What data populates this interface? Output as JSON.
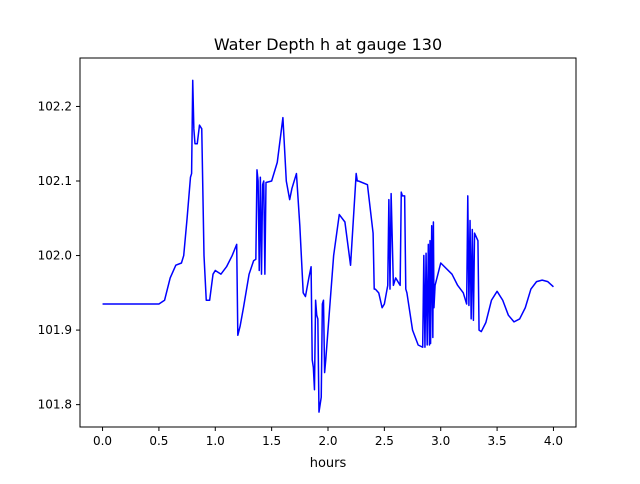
{
  "chart_data": {
    "type": "line",
    "title": "Water Depth h at gauge 130",
    "xlabel": "hours",
    "ylabel": "",
    "xlim": [
      -0.2,
      4.2
    ],
    "ylim": [
      101.77,
      102.265
    ],
    "xticks": [
      0.0,
      0.5,
      1.0,
      1.5,
      2.0,
      2.5,
      3.0,
      3.5,
      4.0
    ],
    "xtick_labels": [
      "0.0",
      "0.5",
      "1.0",
      "1.5",
      "2.0",
      "2.5",
      "3.0",
      "3.5",
      "4.0"
    ],
    "yticks": [
      101.8,
      101.9,
      102.0,
      102.1,
      102.2
    ],
    "ytick_labels": [
      "101.8",
      "101.9",
      "102.0",
      "102.1",
      "102.2"
    ],
    "grid": false,
    "legend": "none",
    "line_color": "#0000ff",
    "series": [
      {
        "color": "#0000ff",
        "x": [
          0.0,
          0.3,
          0.5,
          0.55,
          0.6,
          0.65,
          0.7,
          0.72,
          0.75,
          0.78,
          0.79,
          0.8,
          0.81,
          0.82,
          0.84,
          0.86,
          0.88,
          0.9,
          0.92,
          0.95,
          0.98,
          1.0,
          1.05,
          1.1,
          1.15,
          1.19,
          1.2,
          1.22,
          1.25,
          1.3,
          1.34,
          1.36,
          1.37,
          1.38,
          1.39,
          1.4,
          1.41,
          1.42,
          1.43,
          1.44,
          1.45,
          1.5,
          1.55,
          1.6,
          1.63,
          1.66,
          1.68,
          1.72,
          1.75,
          1.78,
          1.8,
          1.83,
          1.85,
          1.86,
          1.87,
          1.88,
          1.89,
          1.9,
          1.91,
          1.92,
          1.93,
          1.94,
          1.95,
          1.96,
          1.97,
          1.98,
          2.0,
          2.05,
          2.1,
          2.15,
          2.2,
          2.25,
          2.26,
          2.27,
          2.35,
          2.4,
          2.41,
          2.42,
          2.45,
          2.48,
          2.5,
          2.53,
          2.54,
          2.55,
          2.56,
          2.58,
          2.6,
          2.62,
          2.64,
          2.65,
          2.66,
          2.68,
          2.69,
          2.7,
          2.75,
          2.8,
          2.84,
          2.85,
          2.86,
          2.87,
          2.88,
          2.89,
          2.9,
          2.905,
          2.91,
          2.92,
          2.93,
          2.935,
          2.94,
          2.95,
          3.0,
          3.1,
          3.15,
          3.2,
          3.23,
          3.24,
          3.25,
          3.26,
          3.27,
          3.28,
          3.29,
          3.3,
          3.33,
          3.34,
          3.36,
          3.4,
          3.45,
          3.5,
          3.55,
          3.6,
          3.65,
          3.7,
          3.75,
          3.8,
          3.85,
          3.9,
          3.95,
          4.0
        ],
        "y": [
          101.935,
          101.935,
          101.935,
          101.94,
          101.97,
          101.987,
          101.99,
          102.0,
          102.05,
          102.105,
          102.11,
          102.235,
          102.17,
          102.15,
          102.15,
          102.175,
          102.17,
          102.0,
          101.94,
          101.94,
          101.975,
          101.98,
          101.975,
          101.985,
          102.0,
          102.015,
          101.893,
          101.905,
          101.93,
          101.975,
          101.993,
          101.995,
          102.115,
          102.1,
          101.98,
          102.105,
          101.975,
          102.095,
          102.1,
          101.975,
          102.098,
          102.1,
          102.125,
          102.185,
          102.1,
          102.075,
          102.09,
          102.11,
          102.04,
          101.95,
          101.945,
          101.97,
          101.985,
          101.86,
          101.85,
          101.82,
          101.94,
          101.92,
          101.915,
          101.79,
          101.8,
          101.81,
          101.935,
          101.94,
          101.843,
          101.86,
          101.9,
          102.0,
          102.055,
          102.045,
          101.987,
          102.11,
          102.1,
          102.1,
          102.095,
          102.03,
          101.955,
          101.955,
          101.95,
          101.93,
          101.935,
          101.96,
          102.075,
          101.955,
          102.083,
          101.96,
          101.97,
          101.965,
          101.96,
          102.085,
          102.08,
          102.08,
          101.955,
          101.95,
          101.9,
          101.88,
          101.877,
          102.0,
          101.877,
          102.003,
          101.88,
          102.015,
          101.88,
          102.02,
          101.882,
          102.04,
          101.89,
          102.045,
          101.93,
          101.96,
          101.99,
          101.975,
          101.96,
          101.95,
          101.935,
          102.08,
          101.933,
          102.047,
          101.915,
          102.035,
          101.913,
          102.03,
          102.02,
          101.9,
          101.898,
          101.91,
          101.94,
          101.952,
          101.94,
          101.92,
          101.911,
          101.915,
          101.93,
          101.955,
          101.965,
          101.967,
          101.965,
          101.958
        ]
      }
    ]
  }
}
